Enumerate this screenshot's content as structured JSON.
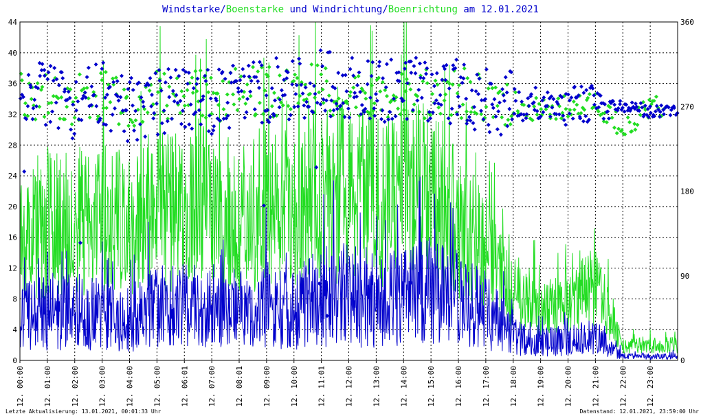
{
  "title": {
    "part1": "Windstarke",
    "sep1": "/",
    "part2": "Boenstarke",
    "part3": " und ",
    "part4": "Windrichtung",
    "sep2": "/",
    "part5": "Boenrichtung",
    "part6": " am 12.01.2021"
  },
  "colors": {
    "wind": "#0000cc",
    "gust": "#22dd22",
    "background": "#ffffff",
    "axis": "#000000"
  },
  "footer": {
    "left": "Letzte Aktualisierung: 13.01.2021, 00:01:33 Uhr",
    "right": "Datenstand: 12.01.2021, 23:59:00 Uhr"
  },
  "chart_data": {
    "type": "line+scatter",
    "title": "Windstarke/Boenstarke und Windrichtung/Boenrichtung am 12.01.2021",
    "x_labels": [
      "12. 00:00",
      "12. 01:00",
      "12. 02:00",
      "12. 03:00",
      "12. 04:00",
      "12. 05:00",
      "12. 06:01",
      "12. 07:00",
      "12. 08:01",
      "12. 09:00",
      "12. 10:00",
      "12. 11:01",
      "12. 12:00",
      "12. 13:00",
      "12. 14:00",
      "12. 15:00",
      "12. 16:00",
      "12. 17:00",
      "12. 18:00",
      "12. 19:00",
      "12. 20:00",
      "12. 21:00",
      "12. 22:00",
      "12. 23:00"
    ],
    "xlim": [
      0,
      24
    ],
    "y_left": {
      "ticks": [
        0,
        4,
        8,
        12,
        16,
        20,
        24,
        28,
        32,
        36,
        40,
        44
      ],
      "range": [
        0,
        44
      ]
    },
    "y_right": {
      "ticks": [
        0,
        90,
        180,
        270,
        360
      ],
      "range": [
        0,
        360
      ]
    },
    "grid": true,
    "series": [
      {
        "name": "Windstarke",
        "kind": "line",
        "axis": "left",
        "hourly_mean": [
          5.5,
          6.5,
          6,
          6,
          5.5,
          7,
          7,
          7,
          6.5,
          7.5,
          6.5,
          8.5,
          8.5,
          8,
          8,
          9,
          8,
          6.5,
          3,
          2.5,
          2.5,
          3,
          0.5,
          0.5
        ]
      },
      {
        "name": "Boenstarke",
        "kind": "line",
        "axis": "left",
        "hourly_mean": [
          16,
          18,
          18,
          19,
          17,
          20,
          19,
          20,
          18,
          20,
          19,
          22,
          22,
          21,
          21,
          22,
          18,
          14,
          8,
          7,
          7,
          10,
          2,
          2
        ]
      },
      {
        "name": "Windrichtung",
        "kind": "scatter",
        "axis": "right",
        "hourly_mean": [
          280,
          285,
          270,
          285,
          265,
          275,
          280,
          275,
          285,
          285,
          290,
          295,
          290,
          290,
          285,
          290,
          285,
          275,
          275,
          270,
          270,
          275,
          270,
          265
        ]
      },
      {
        "name": "Boenrichtung",
        "kind": "scatter",
        "axis": "right",
        "hourly_mean": [
          285,
          280,
          275,
          285,
          270,
          280,
          285,
          280,
          285,
          285,
          290,
          290,
          285,
          285,
          285,
          285,
          285,
          280,
          275,
          265,
          270,
          275,
          245,
          270
        ]
      }
    ]
  }
}
